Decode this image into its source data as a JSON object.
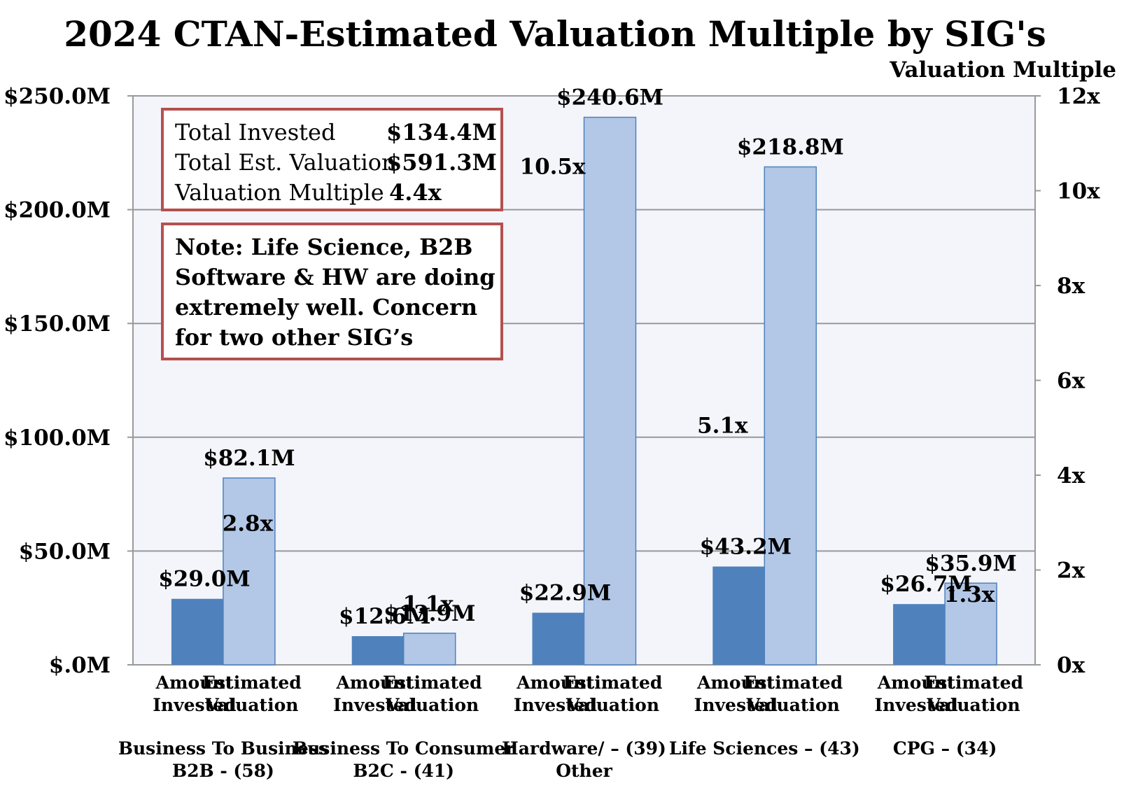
{
  "chart_data": {
    "type": "bar",
    "title": "2024 CTAN-Estimated Valuation Multiple by SIG's",
    "y2label": "Valuation Multiple",
    "ylim": [
      0,
      250
    ],
    "y2lim": [
      0,
      12
    ],
    "y_ticks": [
      "$.0M",
      "$50.0M",
      "$100.0M",
      "$150.0M",
      "$200.0M",
      "$250.0M"
    ],
    "y2_ticks": [
      "0x",
      "2x",
      "4x",
      "6x",
      "8x",
      "10x",
      "12x"
    ],
    "colors": {
      "invested": "#4f81bd",
      "valuation": "#b3c7e6",
      "plot_bg": "#f3f5fa",
      "grid": "#999999",
      "box_border": "#b5504e"
    },
    "bar_labels": {
      "invested": [
        "Amount",
        "Invested"
      ],
      "valuation": [
        "Estimated",
        "Valuation"
      ]
    },
    "groups": [
      {
        "label": [
          "Business To Business",
          "B2B - (58)"
        ],
        "invested": 29.0,
        "invested_label": "$29.0M",
        "valuation": 82.1,
        "valuation_label": "$82.1M",
        "multiple": 2.8,
        "multiple_label": "2.8x"
      },
      {
        "label": [
          "Business To Consumer",
          "B2C - (41)"
        ],
        "invested": 12.6,
        "invested_label": "$12.6M",
        "valuation": 13.9,
        "valuation_label": "$13.9M",
        "multiple": 1.1,
        "multiple_label": "1.1x"
      },
      {
        "label": [
          "Hardware/ – (39)",
          "Other"
        ],
        "invested": 22.9,
        "invested_label": "$22.9M",
        "valuation": 240.6,
        "valuation_label": "$240.6M",
        "multiple": 10.5,
        "multiple_label": "10.5x"
      },
      {
        "label": [
          "Life Sciences – (43)"
        ],
        "invested": 43.2,
        "invested_label": "$43.2M",
        "valuation": 218.8,
        "valuation_label": "$218.8M",
        "multiple": 5.1,
        "multiple_label": "5.1x"
      },
      {
        "label": [
          "CPG – (34)"
        ],
        "invested": 26.7,
        "invested_label": "$26.7M",
        "valuation": 35.9,
        "valuation_label": "$35.9M",
        "multiple": 1.3,
        "multiple_label": "1.3x"
      }
    ],
    "annotations": {
      "summary": [
        {
          "key": "Total Invested",
          "value": "$134.4M"
        },
        {
          "key": "Total Est. Valuation",
          "value": "$591.3M"
        },
        {
          "key": "Valuation Multiple",
          "value": "4.4x"
        }
      ],
      "note": "Note: Life Science, B2B Software & HW are doing extremely well.  Concern for two other SIG’s"
    }
  }
}
